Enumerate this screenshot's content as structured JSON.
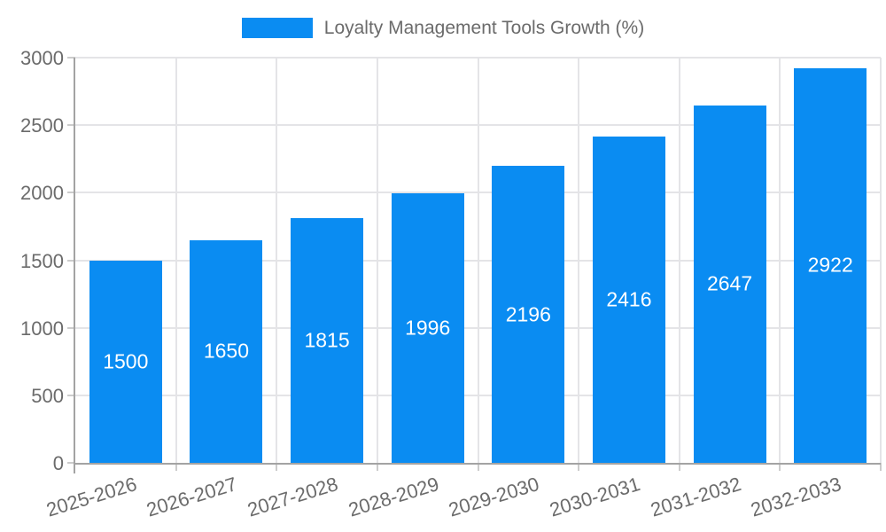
{
  "chart_data": {
    "type": "bar",
    "title": "Loyalty Management Tools Growth (%)",
    "categories": [
      "2025-2026",
      "2026-2027",
      "2027-2028",
      "2028-2029",
      "2029-2030",
      "2030-2031",
      "2031-2032",
      "2032-2033"
    ],
    "values": [
      1500,
      1650,
      1815,
      1996,
      2196,
      2416,
      2647,
      2922
    ],
    "xlabel": "",
    "ylabel": "",
    "ylim": [
      0,
      3000
    ],
    "yticks": [
      0,
      500,
      1000,
      1500,
      2000,
      2500,
      3000
    ],
    "grid": true,
    "legend_position": "top-center",
    "bar_labels_shown": true,
    "bar_label_position": "center-of-bar"
  },
  "colors": {
    "bar": "#0a8cf2",
    "grid": "#e4e4e7",
    "axis": "#a3a3a3",
    "tick": "#cccccc",
    "text": "#6b6b6b",
    "value_label": "#ffffff",
    "background": "#ffffff"
  }
}
